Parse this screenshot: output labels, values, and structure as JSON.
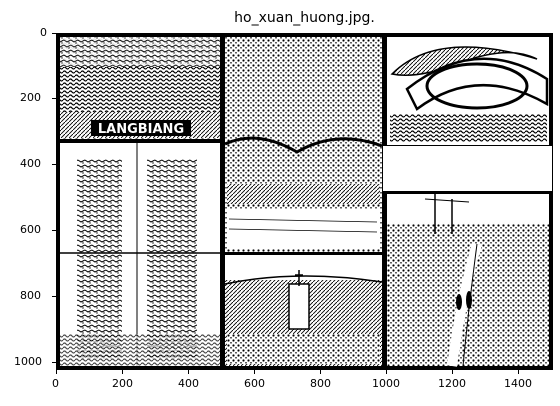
{
  "figure": {
    "title": "ho_xuan_huong.jpg."
  },
  "chart_data": {
    "type": "image",
    "title": "ho_xuan_huong.jpg.",
    "xlim": [
      0,
      1500
    ],
    "ylim": [
      1025,
      0
    ],
    "x_ticks": [
      "0",
      "200",
      "400",
      "600",
      "800",
      "1000",
      "1200",
      "1400"
    ],
    "y_ticks": [
      "0",
      "200",
      "400",
      "600",
      "800",
      "1000"
    ],
    "grid": false,
    "panels": [
      {
        "name": "langbiang-panel",
        "label": "LANGBIANG"
      },
      {
        "name": "forest-lake-panel",
        "label": ""
      },
      {
        "name": "flower-dome-panel",
        "label": ""
      },
      {
        "name": "ornate-gate-panel",
        "label": ""
      },
      {
        "name": "church-town-panel",
        "label": ""
      },
      {
        "name": "hill-path-panel",
        "label": ""
      }
    ]
  }
}
